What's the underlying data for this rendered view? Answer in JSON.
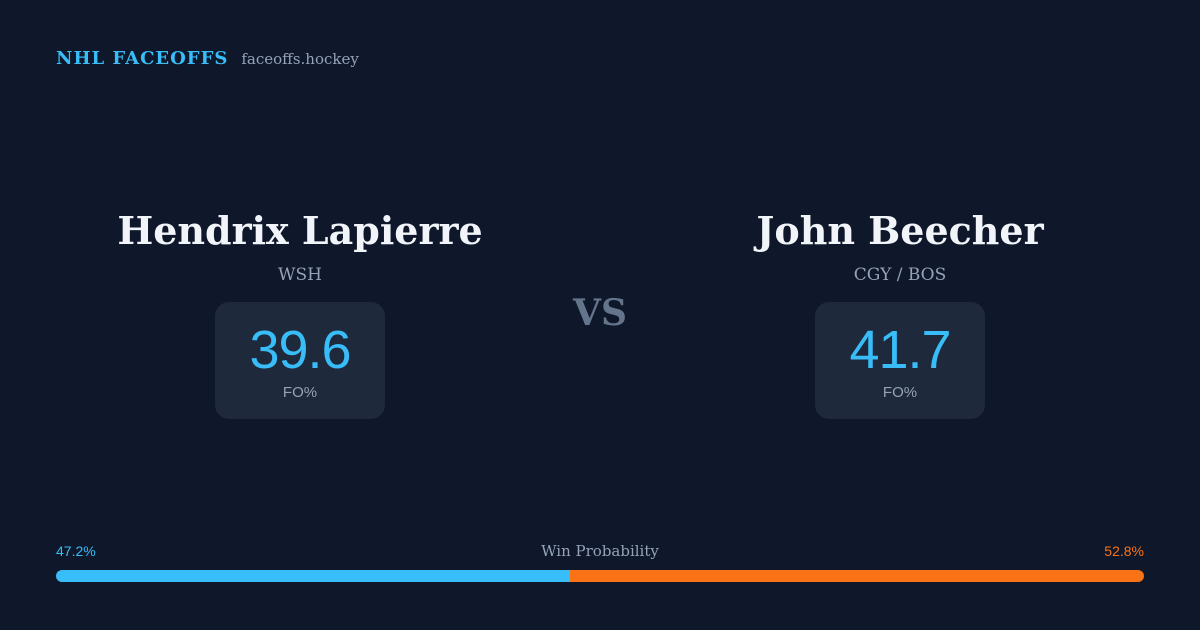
{
  "header": {
    "title": "NHL FACEOFFS",
    "site": "faceoffs.hockey"
  },
  "players": [
    {
      "name": "Hendrix Lapierre",
      "team": "WSH",
      "fo_pct": 39.6,
      "fo_label": "FO%"
    },
    {
      "name": "John Beecher",
      "team": "CGY / BOS",
      "fo_pct": 41.7,
      "fo_label": "FO%"
    }
  ],
  "vs": "VS",
  "win_probability": {
    "title": "Win Probability",
    "values": [
      {
        "value": 47.2,
        "label": "47.2%"
      },
      {
        "value": 52.8,
        "label": "52.8%"
      }
    ]
  }
}
